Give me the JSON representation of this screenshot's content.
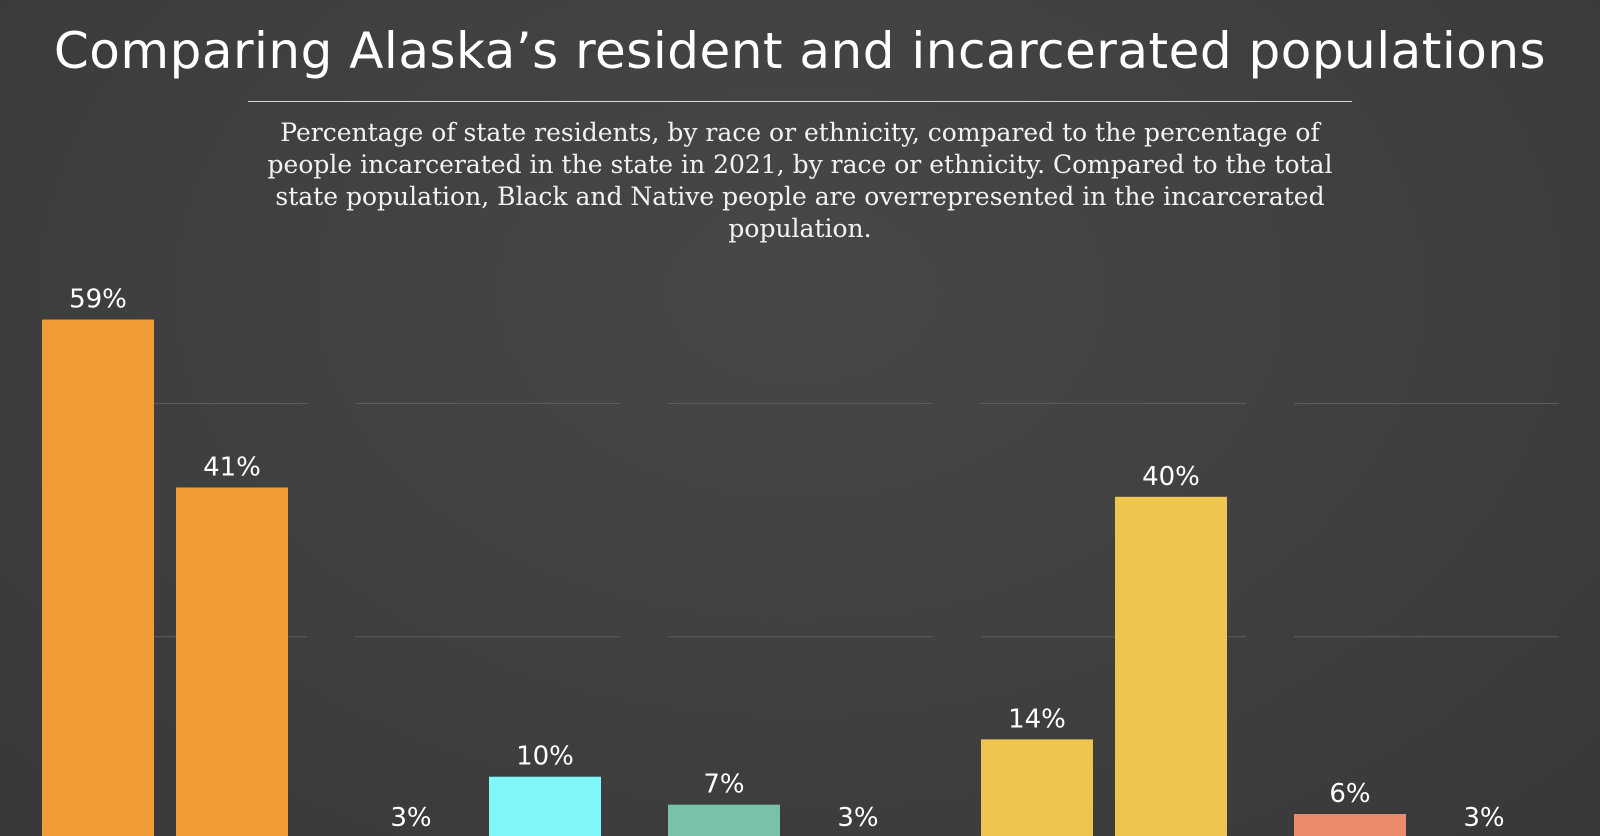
{
  "header": {
    "title": "Comparing Alaska’s resident and incarcerated populations",
    "subtitle": "Percentage of state residents, by race or ethnicity, compared to the percentage of people incarcerated in the state in 2021, by race or ethnicity. Compared to the total state population, Black and Native people are overrepresented in the incarcerated population."
  },
  "chart_data": {
    "type": "bar",
    "title": "Comparing Alaska’s resident and incarcerated populations",
    "subtitle": "Percentage of state residents, by race or ethnicity, compared to the percentage of people incarcerated in the state in 2021, by race or ethnicity. Compared to the total state population, Black and Native people are overrepresented in the incarcerated population.",
    "ylim": [
      0,
      65
    ],
    "gridlines": [
      25,
      50
    ],
    "grid": true,
    "legend": "none",
    "groups": [
      {
        "color": "#f09c37",
        "bars": [
          {
            "value": 59,
            "label": "59%"
          },
          {
            "value": 41,
            "label": "41%"
          }
        ]
      },
      {
        "color": "#80f7fb",
        "bars": [
          {
            "value": 3,
            "label": "3%"
          },
          {
            "value": 10,
            "label": "10%"
          }
        ]
      },
      {
        "color": "#78c3a8",
        "bars": [
          {
            "value": 7,
            "label": "7%"
          },
          {
            "value": 3,
            "label": "3%"
          }
        ]
      },
      {
        "color": "#efc552",
        "bars": [
          {
            "value": 14,
            "label": "14%"
          },
          {
            "value": 40,
            "label": "40%"
          }
        ]
      },
      {
        "color": "#ee8a6c",
        "bars": [
          {
            "value": 6,
            "label": "6%"
          },
          {
            "value": 3,
            "label": "3%"
          }
        ]
      }
    ]
  }
}
